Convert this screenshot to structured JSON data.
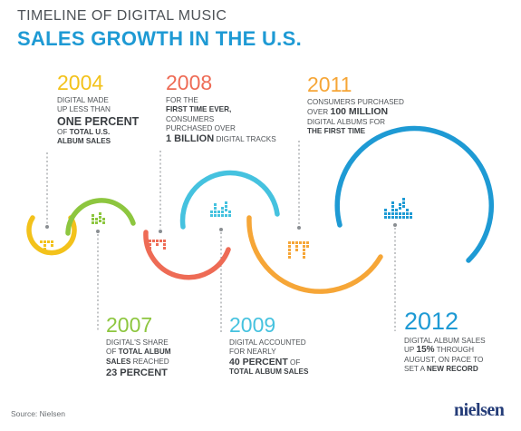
{
  "header": {
    "line1": "TIMELINE OF DIGITAL MUSIC",
    "line2": "SALES GROWTH IN THE U.S."
  },
  "milestones": [
    {
      "year": "2004",
      "color": "#f3c21b",
      "lines": [
        "DIGITAL MADE",
        "UP LESS THAN",
        "ONE PERCENT",
        "OF TOTAL U.S.",
        "ALBUM SALES"
      ]
    },
    {
      "year": "2007",
      "color": "#8dc63f",
      "lines": [
        "DIGITAL'S SHARE",
        "OF TOTAL ALBUM",
        "SALES REACHED",
        "23 PERCENT"
      ]
    },
    {
      "year": "2008",
      "color": "#ee6b55",
      "lines": [
        "FOR THE",
        "FIRST TIME EVER,",
        "CONSUMERS",
        "PURCHASED OVER",
        "1 BILLION DIGITAL TRACKS"
      ]
    },
    {
      "year": "2009",
      "color": "#45c2df",
      "lines": [
        "DIGITAL ACCOUNTED",
        "FOR NEARLY",
        "40 PERCENT OF",
        "TOTAL ALBUM SALES"
      ]
    },
    {
      "year": "2011",
      "color": "#f6a637",
      "lines": [
        "CONSUMERS PURCHASED",
        "OVER 100 MILLION",
        "DIGITAL ALBUMS FOR",
        "THE FIRST TIME"
      ]
    },
    {
      "year": "2012",
      "color": "#1e9ad4",
      "lines": [
        "DIGITAL ALBUM SALES",
        "UP 15% THROUGH",
        "AUGUST, ON PACE TO",
        "SET A NEW RECORD"
      ]
    }
  ],
  "footer": {
    "source": "Source: Nielsen",
    "logo": "nielsen"
  },
  "icons": [
    "equalizer-bars-icon"
  ]
}
